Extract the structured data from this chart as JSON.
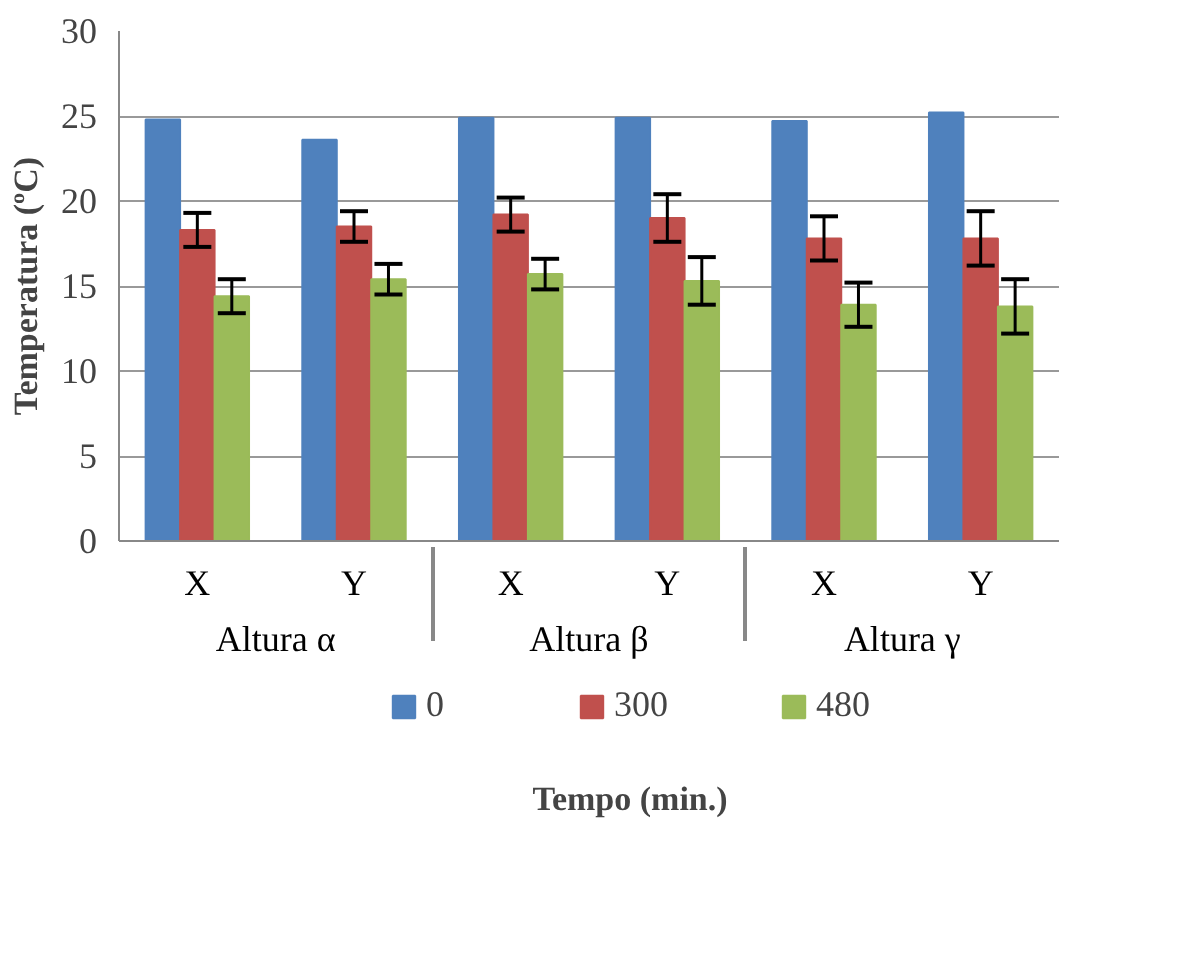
{
  "chart_data": {
    "type": "bar",
    "ylabel": "Temperatura (ºC)",
    "legend_title": "Tempo (min.)",
    "categories": [
      "X",
      "Y",
      "X",
      "Y",
      "X",
      "Y"
    ],
    "annotations": [
      "Altura α",
      "Altura β",
      "Altura γ"
    ],
    "series": [
      {
        "name": "0",
        "color": "#4f81bd",
        "values": [
          24.8,
          23.6,
          24.9,
          24.9,
          24.7,
          25.2
        ]
      },
      {
        "name": "300",
        "color": "#c0504d",
        "values": [
          18.3,
          18.5,
          19.2,
          19.0,
          17.8,
          17.8
        ],
        "errors": [
          1.0,
          0.9,
          1.0,
          1.4,
          1.3,
          1.6
        ]
      },
      {
        "name": "480",
        "color": "#9bbb59",
        "values": [
          14.4,
          15.4,
          15.7,
          15.3,
          13.9,
          13.8
        ],
        "errors": [
          1.0,
          0.9,
          0.9,
          1.4,
          1.3,
          1.6
        ]
      }
    ],
    "ylim": [
      0,
      30
    ],
    "yticks": [
      0,
      5,
      10,
      15,
      20,
      25,
      30
    ],
    "grid": "y",
    "legend": "bottom"
  }
}
